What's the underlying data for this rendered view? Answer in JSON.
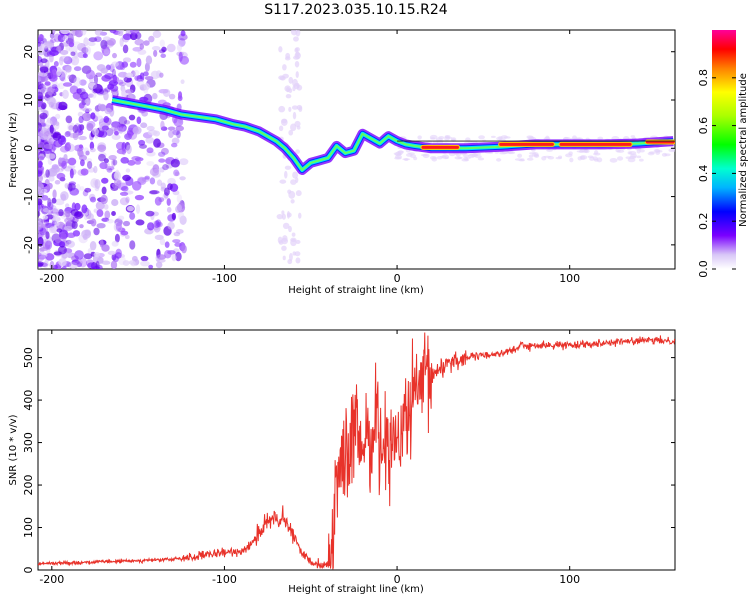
{
  "title": "S117.2023.035.10.15.R24",
  "chart_data": [
    {
      "type": "heatmap",
      "name": "spectrogram",
      "xlabel": "Height of straight line (km)",
      "ylabel": "Frequency (Hz)",
      "xlim": [
        -208,
        161
      ],
      "ylim": [
        -25,
        24.5
      ],
      "xticks": [
        -200,
        -100,
        0,
        100
      ],
      "xtick_labels": [
        "-200",
        "-100",
        "0",
        "100"
      ],
      "yticks": [
        -20,
        -10,
        0,
        10,
        20
      ],
      "ytick_labels": [
        "-20",
        "-10",
        "0",
        "10",
        "20"
      ],
      "ridge": {
        "x": [
          -165,
          -150,
          -135,
          -125,
          -115,
          -105,
          -95,
          -88,
          -80,
          -75,
          -70,
          -65,
          -60,
          -55,
          -50,
          -45,
          -40,
          -35,
          -30,
          -25,
          -20,
          -15,
          -10,
          -5,
          0,
          5,
          10,
          20,
          40,
          60,
          80,
          100,
          120,
          140,
          160
        ],
        "y": [
          10,
          9,
          8,
          7,
          6.5,
          6,
          5,
          4.5,
          3.5,
          2.5,
          1.5,
          0,
          -2,
          -4.5,
          -3,
          -2.5,
          -2,
          0.5,
          -1,
          -0.5,
          3,
          2,
          1,
          2.5,
          1.5,
          0.8,
          0.5,
          0,
          0,
          0.3,
          0.8,
          0.8,
          0.8,
          1,
          1.5
        ]
      },
      "colorbar": {
        "label": "Normalized spectral amplitude",
        "range": [
          0,
          1
        ],
        "ticks": [
          0.0,
          0.2,
          0.4,
          0.6,
          0.8
        ],
        "tick_labels": [
          "0.0",
          "0.2",
          "0.4",
          "0.6",
          "0.8"
        ]
      }
    },
    {
      "type": "line",
      "name": "snr",
      "xlabel": "Height of straight line (km)",
      "ylabel": "SNR (10 * v/v)",
      "xlim": [
        -208,
        161
      ],
      "ylim": [
        0,
        565
      ],
      "xticks": [
        -200,
        -100,
        0,
        100
      ],
      "xtick_labels": [
        "-200",
        "-100",
        "0",
        "100"
      ],
      "yticks": [
        0,
        100,
        200,
        300,
        400,
        500
      ],
      "ytick_labels": [
        "0",
        "100",
        "200",
        "300",
        "400",
        "500"
      ],
      "series": [
        {
          "name": "SNR",
          "color": "#e8322a",
          "x": [
            -208,
            -180,
            -150,
            -130,
            -120,
            -110,
            -100,
            -90,
            -85,
            -80,
            -75,
            -70,
            -65,
            -60,
            -55,
            -50,
            -45,
            -40,
            -38,
            -35,
            -33,
            -30,
            -28,
            -25,
            -22,
            -20,
            -18,
            -15,
            -12,
            -10,
            -8,
            -5,
            -2,
            0,
            3,
            5,
            8,
            10,
            12,
            15,
            18,
            20,
            22,
            25,
            28,
            30,
            35,
            40,
            50,
            60,
            70,
            72,
            75,
            80,
            100,
            120,
            140,
            161
          ],
          "y": [
            15,
            18,
            22,
            25,
            30,
            35,
            40,
            45,
            60,
            90,
            110,
            120,
            115,
            80,
            40,
            20,
            15,
            10,
            40,
            200,
            280,
            260,
            240,
            330,
            300,
            280,
            330,
            310,
            370,
            290,
            300,
            310,
            330,
            270,
            330,
            360,
            380,
            400,
            420,
            430,
            440,
            450,
            465,
            475,
            485,
            490,
            495,
            500,
            505,
            510,
            520,
            535,
            525,
            528,
            530,
            535,
            540,
            540
          ]
        }
      ]
    }
  ]
}
